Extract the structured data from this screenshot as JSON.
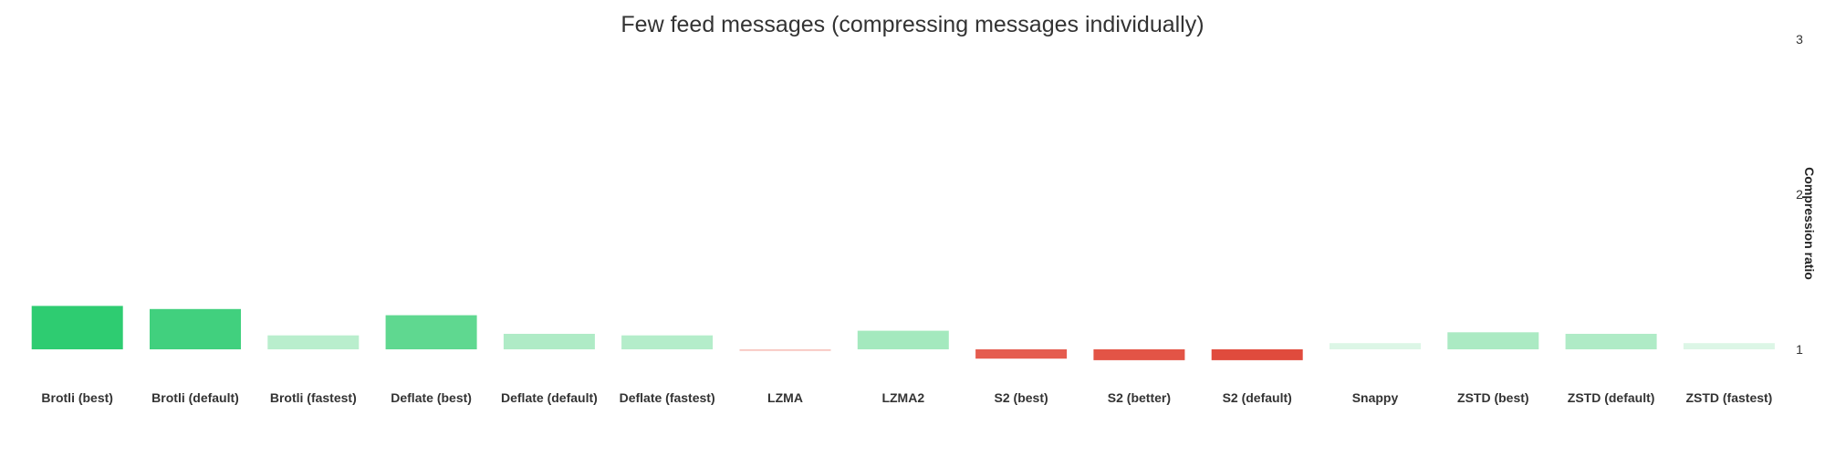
{
  "chart_data": {
    "type": "bar",
    "title": "Few feed messages (compressing messages individually)",
    "xlabel": "",
    "ylabel": "Compression ratio",
    "ylim": [
      1,
      3
    ],
    "yticks": [
      "1",
      "2",
      "3"
    ],
    "y_axis_position": "right",
    "baseline": 1,
    "grid": false,
    "legend": "none",
    "categories": [
      "Brotli (best)",
      "Brotli (default)",
      "Brotli (fastest)",
      "Deflate (best)",
      "Deflate (default)",
      "Deflate (fastest)",
      "LZMA",
      "LZMA2",
      "S2 (best)",
      "S2 (better)",
      "S2 (default)",
      "Snappy",
      "ZSTD (best)",
      "ZSTD (default)",
      "ZSTD (fastest)"
    ],
    "values": [
      1.28,
      1.26,
      1.09,
      1.22,
      1.1,
      1.09,
      0.99,
      1.12,
      0.94,
      0.93,
      0.93,
      1.04,
      1.11,
      1.1,
      1.04
    ],
    "colors": [
      "#2ecc71",
      "#41d07e",
      "#b9eecd",
      "#5fd890",
      "#afebc6",
      "#b4edca",
      "#f7c3bd",
      "#a4e9be",
      "#e55c4f",
      "#e35446",
      "#e04b3d",
      "#dcf6e6",
      "#abeac3",
      "#afebc6",
      "#dcf6e6"
    ]
  }
}
